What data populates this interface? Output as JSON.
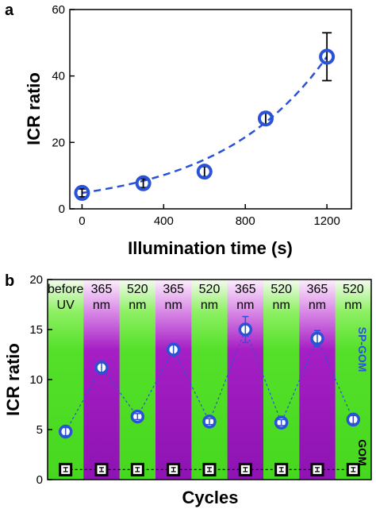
{
  "colors": {
    "marker_blue": "#2a52d6",
    "green": "#55e02a",
    "purple": "#a51fc4",
    "gom_black": "#000000"
  },
  "chart_data": [
    {
      "panel_label": "a",
      "type": "scatter",
      "xlabel": "Illumination time (s)",
      "ylabel": "ICR ratio",
      "xlim": [
        -60,
        1320
      ],
      "ylim": [
        0,
        60
      ],
      "xticks": [
        0,
        400,
        800,
        1200
      ],
      "yticks": [
        0,
        20,
        40,
        60
      ],
      "grid": false,
      "series": [
        {
          "x": [
            0,
            300,
            600,
            900,
            1200
          ],
          "y": [
            4.8,
            7.7,
            11.2,
            27.2,
            45.8
          ],
          "error": [
            1.2,
            1.3,
            1.5,
            1.8,
            7.2
          ],
          "fit": "dashed exponential curve"
        }
      ]
    },
    {
      "panel_label": "b",
      "type": "scatter",
      "xlabel": "Cycles",
      "ylabel": "ICR ratio",
      "ylim": [
        0,
        20
      ],
      "yticks": [
        0,
        5,
        10,
        15,
        20
      ],
      "grid": false,
      "conditions": [
        {
          "line1": "before",
          "line2": "UV",
          "band": "green"
        },
        {
          "line1": "365",
          "line2": "nm",
          "band": "purple"
        },
        {
          "line1": "520",
          "line2": "nm",
          "band": "green"
        },
        {
          "line1": "365",
          "line2": "nm",
          "band": "purple"
        },
        {
          "line1": "520",
          "line2": "nm",
          "band": "green"
        },
        {
          "line1": "365",
          "line2": "nm",
          "band": "purple"
        },
        {
          "line1": "520",
          "line2": "nm",
          "band": "green"
        },
        {
          "line1": "365",
          "line2": "nm",
          "band": "purple"
        },
        {
          "line1": "520",
          "line2": "nm",
          "band": "green"
        }
      ],
      "series": [
        {
          "name": "SP-GOM",
          "values": [
            4.8,
            11.2,
            6.3,
            13.0,
            5.8,
            15.0,
            5.7,
            14.1,
            6.0
          ],
          "error": [
            0.4,
            0.5,
            0.3,
            0.5,
            0.3,
            1.3,
            0.3,
            0.8,
            0.4
          ],
          "marker": "open circle"
        },
        {
          "name": "GOM",
          "values": [
            1.0,
            1.0,
            1.0,
            1.0,
            1.0,
            1.0,
            1.0,
            1.0,
            1.0
          ],
          "error": [
            0.2,
            0.2,
            0.2,
            0.2,
            0.2,
            0.2,
            0.2,
            0.2,
            0.2
          ],
          "marker": "open square"
        }
      ]
    }
  ]
}
